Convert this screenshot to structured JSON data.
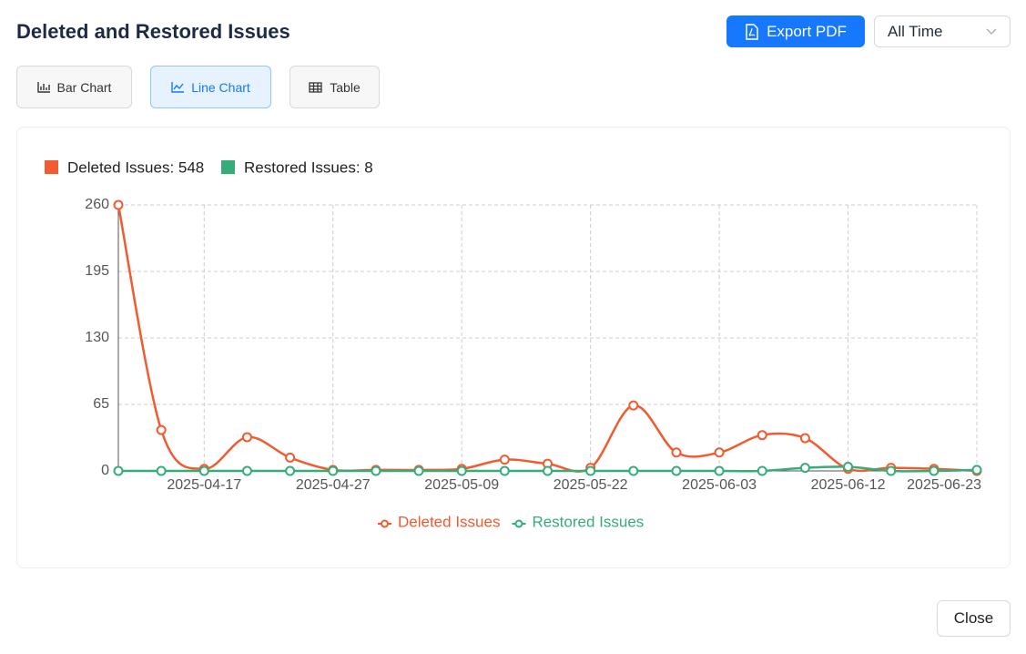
{
  "header": {
    "title": "Deleted and Restored Issues",
    "export_button": "Export PDF",
    "range_select": "All Time"
  },
  "tabs": [
    "Bar Chart",
    "Line Chart",
    "Table"
  ],
  "summary": [
    "Deleted Issues: 548",
    "Restored Issues: 8"
  ],
  "close_button": "Close",
  "chart_data": {
    "type": "line",
    "categories": [
      null,
      null,
      "2025-04-17",
      null,
      null,
      "2025-04-27",
      null,
      null,
      "2025-05-09",
      null,
      null,
      "2025-05-22",
      null,
      null,
      "2025-06-03",
      null,
      null,
      "2025-06-12",
      null,
      null,
      "2025-06-23"
    ],
    "series": [
      {
        "name": "Deleted Issues",
        "color": "#f25a30",
        "values": [
          260,
          40,
          2,
          33,
          13,
          1,
          1,
          1,
          2,
          11,
          7,
          3,
          64,
          18,
          18,
          35,
          32,
          2,
          3,
          2,
          0
        ]
      },
      {
        "name": "Restored Issues",
        "color": "#36ac78",
        "values": [
          0,
          0,
          0,
          0,
          0,
          0,
          0,
          0,
          0,
          0,
          0,
          0,
          0,
          0,
          0,
          0,
          3,
          4,
          0,
          0,
          1
        ]
      }
    ],
    "ylim": [
      0,
      260
    ],
    "yticks": [
      0,
      65,
      130,
      195,
      260
    ],
    "grid": true,
    "smooth": true
  }
}
